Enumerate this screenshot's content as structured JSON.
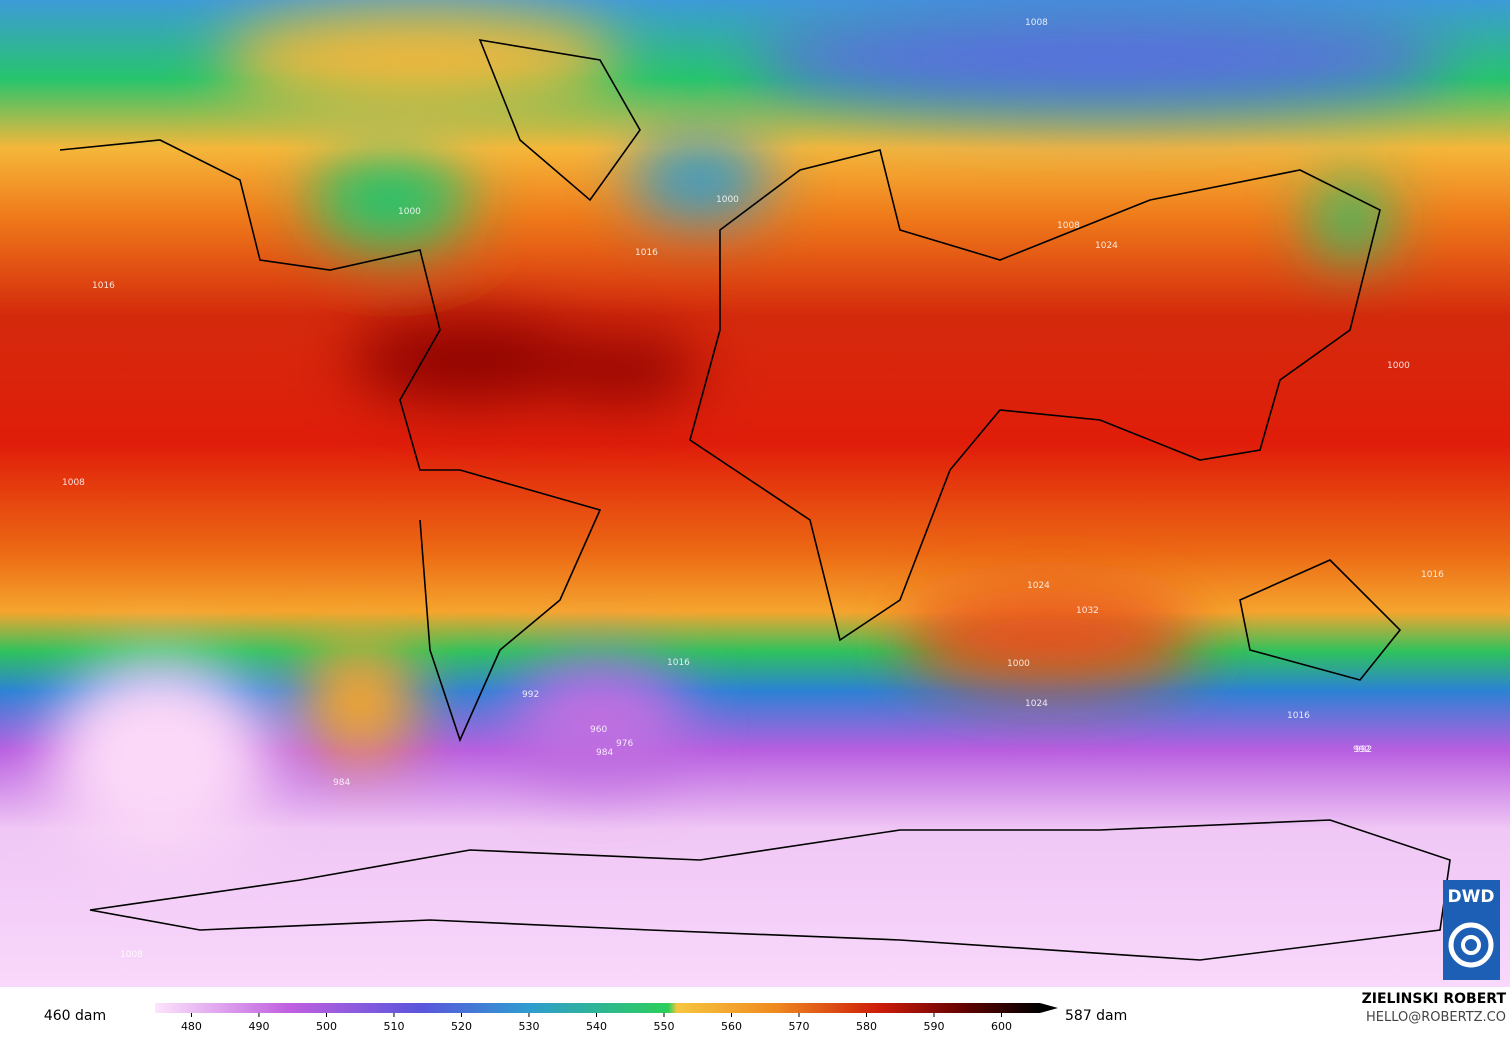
{
  "map": {
    "isobar_labels": [
      "1008",
      "1024",
      "1016",
      "1000",
      "1008",
      "1016",
      "1000",
      "1008",
      "1032",
      "1024",
      "1016",
      "1016",
      "992",
      "1000",
      "1016",
      "1024",
      "992",
      "960",
      "976",
      "984",
      "992",
      "984",
      "1008",
      "1000"
    ]
  },
  "colorbar": {
    "min_label": "460 dam",
    "max_label": "587 dam",
    "lim": [
      474.6,
      605.7
    ],
    "ticks": [
      480,
      490,
      500,
      510,
      520,
      530,
      540,
      550,
      560,
      570,
      580,
      590,
      600
    ]
  },
  "credit": {
    "author": "ZIELINSKI ROBERT",
    "contact": "HELLO@ROBERTZ.CO"
  },
  "logo": {
    "text": "DWD"
  }
}
